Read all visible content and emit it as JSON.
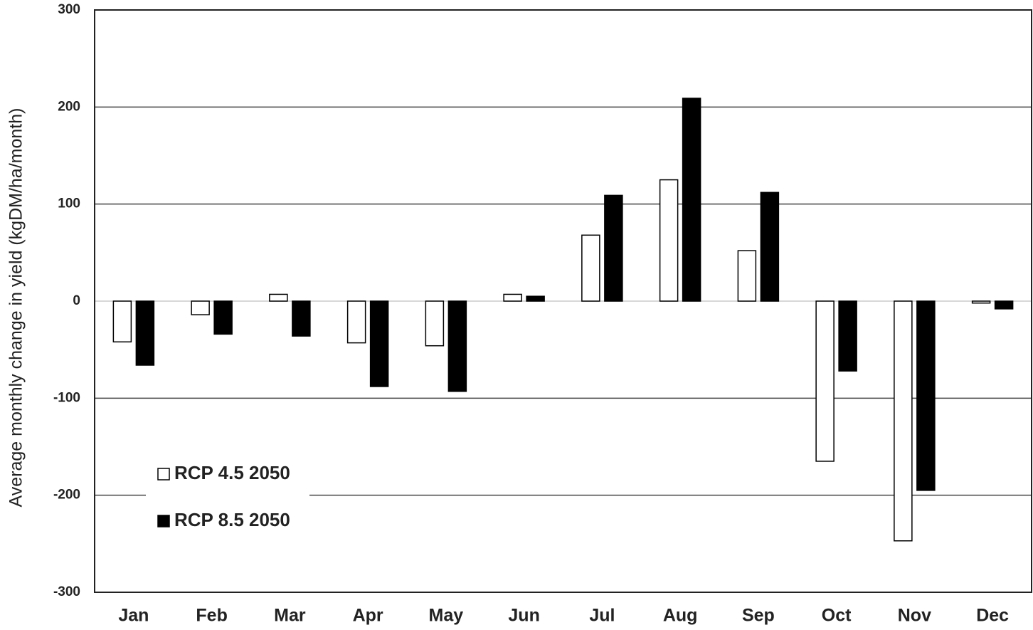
{
  "chart_data": {
    "type": "bar",
    "y_label": "Average monthly change in yield (kgDM/ha/month)",
    "categories": [
      "Jan",
      "Feb",
      "Mar",
      "Apr",
      "May",
      "Jun",
      "Jul",
      "Aug",
      "Sep",
      "Oct",
      "Nov",
      "Dec"
    ],
    "series": [
      {
        "name": "RCP 4.5 2050",
        "color": "#ffffff",
        "values": [
          -42,
          -14,
          7,
          -43,
          -46,
          7,
          68,
          125,
          52,
          -165,
          -247,
          -2
        ]
      },
      {
        "name": "RCP 8.5 2050",
        "color": "#000000",
        "values": [
          -66,
          -34,
          -36,
          -88,
          -93,
          5,
          109,
          209,
          112,
          -72,
          -195,
          -8
        ]
      }
    ],
    "ylim": [
      -300,
      300
    ],
    "yticks": [
      -300,
      -200,
      -100,
      0,
      100,
      200,
      300
    ],
    "grid": true,
    "legend": "lower left"
  }
}
